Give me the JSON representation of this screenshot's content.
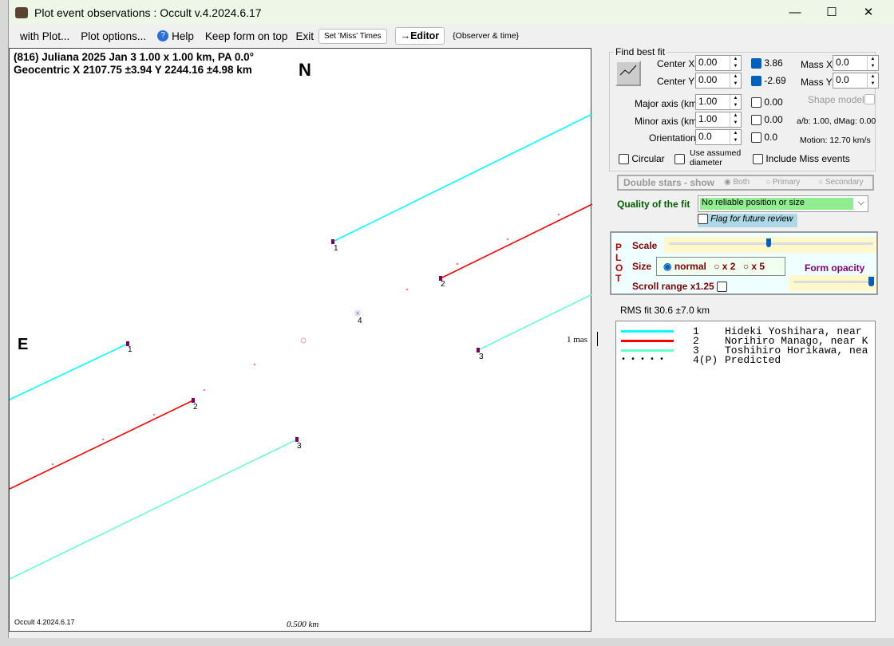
{
  "window": {
    "title": "Plot event observations : Occult v.4.2024.6.17",
    "minimize": "—",
    "maximize": "☐",
    "close": "✕"
  },
  "menu": {
    "with_plot": "with Plot...",
    "plot_options": "Plot options...",
    "help": "Help",
    "keep_on_top": "Keep form on top",
    "exit": "Exit",
    "set_miss": "Set 'Miss' Times",
    "editor": "→Editor",
    "observer_time": "{Observer & time}"
  },
  "plot": {
    "header1": "(816) Juliana  2025 Jan 3   1.00 x 1.00 km, PA 0.0°",
    "header2": "Geocentric  X  2107.75 ±3.94  Y 2244.16 ±4.98 km",
    "north": "N",
    "east": "E",
    "scale_mas": "1 mas",
    "scale_km": "0.500 km",
    "version": "Occult 4.2024.6.17",
    "chord_labels": [
      "1",
      "2",
      "3",
      "4"
    ]
  },
  "fit": {
    "group": "Find best fit",
    "center_x_label": "Center X",
    "center_x": "0.00",
    "center_y_label": "Center Y",
    "center_y": "0.00",
    "cx_val": "3.86",
    "cy_val": "-2.69",
    "mass_x_label": "Mass X",
    "mass_x": "0.0",
    "mass_y_label": "Mass Y",
    "mass_y": "0.0",
    "major_label": "Major axis (km)",
    "major": "1.00",
    "major_val": "0.00",
    "minor_label": "Minor axis (km)",
    "minor": "1.00",
    "minor_val": "0.00",
    "orient_label": "Orientation",
    "orient": "0.0",
    "orient_val": "0.0",
    "shape_model": "Shape model",
    "ab": "a/b: 1.00, dMag: 0.00",
    "motion": "Motion: 12.70 km/s",
    "circular": "Circular",
    "assumed": "Use assumed diameter",
    "include_miss": "Include Miss events"
  },
  "double": {
    "label": "Double stars - show",
    "both": "Both",
    "primary": "Primary",
    "secondary": "Secondary"
  },
  "quality": {
    "label": "Quality of the fit",
    "value": "No reliable position or size",
    "flag": "Flag for future review"
  },
  "plotbox": {
    "title": "PLOT",
    "scale": "Scale",
    "size": "Size",
    "normal": "normal",
    "x2": "x 2",
    "x5": "x 5",
    "opacity": "Form opacity",
    "scroll": "Scroll range x1.25",
    "scale_pos": 0.5,
    "opacity_pos": 1.0
  },
  "rms": "RMS fit 30.6 ±7.0 km",
  "legend": [
    {
      "color": "#00ffff",
      "num": "1",
      "name": "Hideki Yoshihara, near"
    },
    {
      "color": "#ff0000",
      "num": "2",
      "name": "Norihiro Manago, near K"
    },
    {
      "color": "#66ffcc",
      "num": "3",
      "name": "Toshihiro Horikawa, nea"
    },
    {
      "color": "dots",
      "num": "4(P)",
      "name": "Predicted"
    }
  ]
}
